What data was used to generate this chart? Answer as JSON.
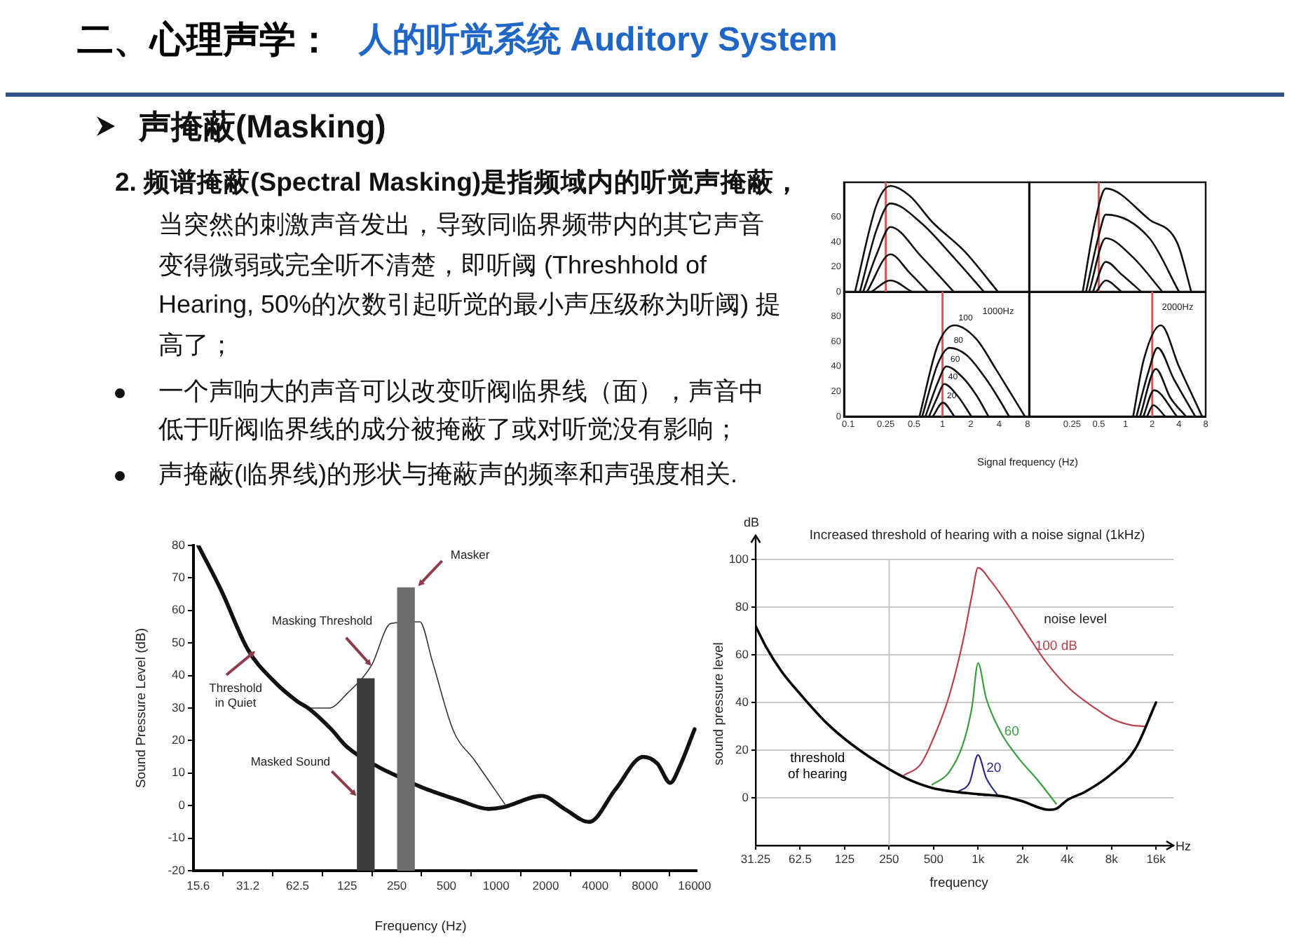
{
  "chart_data": [
    {
      "type": "other",
      "title": "二、心理声学：",
      "subtitle": "人的听觉系统 Auditory System",
      "annotations": [
        "声掩蔽(Masking)",
        "2. 频谱掩蔽(Spectral Masking)是指频域内的听觉声掩蔽，",
        "当突然的刺激声音发出，导致同临界频带内的其它声音变得微弱或完全听不清楚，即听阈 (Threshhold of Hearing, 50%的次数引起听觉的最小声压级称为听阈) 提高了；",
        "一个声响大的声音可以改变听阀临界线（面），声音中低于听阀临界线的成分被掩蔽了或对听觉没有影响；",
        "声掩蔽(临界线)的形状与掩蔽声的频率和声强度相关."
      ]
    },
    {
      "type": "line",
      "log": "x",
      "xlim": [
        0.09,
        8.3
      ],
      "ylim": [
        0,
        88
      ],
      "yticks": [
        0,
        20,
        40,
        60
      ],
      "tick_labels": "y",
      "ref_lines": [
        {
          "axis": "x",
          "value": 0.25,
          "color": "#d9534f"
        }
      ],
      "series": [
        {
          "color": "#111111",
          "x": [
            0.118,
            0.2,
            0.28,
            0.45,
            0.78,
            1.74,
            3.88
          ],
          "values": [
            0,
            70,
            85,
            77,
            56,
            32,
            0
          ]
        },
        {
          "color": "#111111",
          "x": [
            0.133,
            0.2,
            0.28,
            0.6,
            1.3,
            2.75
          ],
          "values": [
            0,
            50,
            71,
            55,
            28,
            0
          ]
        },
        {
          "color": "#111111",
          "x": [
            0.144,
            0.2,
            0.28,
            0.6,
            1.31
          ],
          "values": [
            0,
            30,
            52,
            28,
            0
          ]
        },
        {
          "color": "#111111",
          "x": [
            0.158,
            0.28,
            0.45,
            0.7
          ],
          "values": [
            0,
            30,
            15,
            0
          ]
        },
        {
          "color": "#111111",
          "x": [
            0.177,
            0.28,
            0.47
          ],
          "values": [
            0,
            9,
            0
          ]
        }
      ]
    },
    {
      "type": "line",
      "log": "x",
      "xlim": [
        0.082,
        8
      ],
      "ylim": [
        0,
        88
      ],
      "yticks": [
        0,
        20,
        40,
        60
      ],
      "tick_labels": false,
      "ref_lines": [
        {
          "axis": "x",
          "value": 0.5,
          "color": "#d9534f"
        }
      ],
      "series": [
        {
          "color": "#111111",
          "x": [
            0.33,
            0.45,
            0.6,
            1.86,
            3.84,
            5.5
          ],
          "values": [
            0,
            55,
            83,
            58,
            39,
            0
          ]
        },
        {
          "color": "#111111",
          "x": [
            0.36,
            0.5,
            0.6,
            1.86,
            4.0
          ],
          "values": [
            0,
            45,
            62,
            43,
            0
          ]
        },
        {
          "color": "#111111",
          "x": [
            0.39,
            0.6,
            1.2,
            2.6
          ],
          "values": [
            0,
            43,
            28,
            0
          ]
        },
        {
          "color": "#111111",
          "x": [
            0.43,
            0.6,
            0.9,
            1.5
          ],
          "values": [
            0,
            24,
            14,
            0
          ]
        },
        {
          "color": "#111111",
          "x": [
            0.47,
            0.6,
            0.9
          ],
          "values": [
            0,
            9,
            0
          ]
        }
      ]
    },
    {
      "type": "line",
      "title": "1000Hz",
      "xlabel": "Signal frequency (Hz)",
      "log": "x",
      "xlim": [
        0.09,
        8.3
      ],
      "xticks": [
        0.1,
        0.25,
        0.5,
        1,
        2,
        4,
        8
      ],
      "ylim": [
        0,
        100
      ],
      "yticks": [
        0,
        20,
        40,
        60,
        80
      ],
      "ref_lines": [
        {
          "axis": "x",
          "value": 1,
          "color": "#d9534f"
        }
      ],
      "series": [
        {
          "name": "100",
          "color": "#111111",
          "x": [
            0.57,
            0.89,
            1.34,
            2.29,
            3.68,
            5.26,
            7.5
          ],
          "values": [
            0,
            57,
            73,
            62,
            38,
            19,
            0
          ]
        },
        {
          "name": "80",
          "color": "#111111",
          "x": [
            0.61,
            0.89,
            1.19,
            1.81,
            2.9,
            3.9,
            5.1
          ],
          "values": [
            0,
            42,
            55,
            49,
            30,
            15,
            0
          ]
        },
        {
          "name": "60",
          "color": "#111111",
          "x": [
            0.66,
            0.89,
            1.1,
            1.6,
            2.29,
            3.08
          ],
          "values": [
            0,
            27,
            40,
            32,
            17,
            0
          ]
        },
        {
          "name": "40",
          "color": "#111111",
          "x": [
            0.72,
            0.89,
            1.04,
            1.43,
            2.03
          ],
          "values": [
            0,
            16,
            26,
            17,
            0
          ]
        },
        {
          "name": "20",
          "color": "#111111",
          "x": [
            0.79,
            1.01,
            1.34
          ],
          "values": [
            0,
            11,
            0
          ]
        }
      ]
    },
    {
      "type": "line",
      "title": "2000Hz",
      "log": "x",
      "xlim": [
        0.082,
        8
      ],
      "xticks": [
        0.25,
        0.5,
        1,
        2,
        4,
        8
      ],
      "ylim": [
        0,
        100
      ],
      "yticks": [
        0,
        20,
        40,
        60,
        80
      ],
      "tick_labels": "x",
      "ref_lines": [
        {
          "axis": "x",
          "value": 2,
          "color": "#d9534f"
        }
      ],
      "series": [
        {
          "color": "#111111",
          "x": [
            1.22,
            1.6,
            2.5,
            4.0,
            7.3
          ],
          "values": [
            0,
            45,
            73,
            40,
            0
          ]
        },
        {
          "color": "#111111",
          "x": [
            1.33,
            1.8,
            2.3,
            3.5,
            6.1
          ],
          "values": [
            0,
            35,
            55,
            30,
            0
          ]
        },
        {
          "color": "#111111",
          "x": [
            1.46,
            2.2,
            3.2,
            4.8
          ],
          "values": [
            0,
            38,
            15,
            0
          ]
        },
        {
          "color": "#111111",
          "x": [
            1.59,
            2.1,
            3.8
          ],
          "values": [
            0,
            21,
            0
          ]
        },
        {
          "color": "#111111",
          "x": [
            1.75,
            2.05,
            2.8
          ],
          "values": [
            0,
            9,
            0
          ]
        }
      ]
    },
    {
      "type": "line",
      "xlabel": "Frequency (Hz)",
      "ylabel": "Sound Pressure Level (dB)",
      "log": "x",
      "xlim": [
        14.6,
        16500
      ],
      "xticks": [
        15.6,
        31.2,
        62.5,
        125,
        250,
        500,
        1000,
        2000,
        4000,
        8000,
        16000
      ],
      "ylim": [
        -20,
        80
      ],
      "yticks": [
        -20,
        -10,
        0,
        10,
        20,
        30,
        40,
        50,
        60,
        70,
        80
      ],
      "series": [
        {
          "color": "#111111",
          "x": [
            15.6,
            21.6,
            31.2,
            44.4,
            62.5,
            72.5,
            100,
            125,
            200,
            230,
            340,
            607,
            900,
            1100,
            1900,
            2600,
            3670,
            5300,
            7800,
            9500,
            11400,
            13000,
            16000
          ],
          "values": [
            80,
            66,
            48,
            38.5,
            32,
            30,
            23.5,
            18,
            11.5,
            10,
            6,
            1.5,
            -1,
            -0.5,
            3,
            -1,
            -5,
            5,
            15,
            13,
            7,
            12,
            23.5
          ]
        },
        {
          "color": "#333333",
          "x": [
            72.5,
            97,
            125,
            175,
            230,
            345,
            410,
            551,
            739,
            1130
          ],
          "values": [
            30,
            30,
            34.5,
            43,
            56,
            56.5,
            44.5,
            23,
            14,
            0.5
          ]
        },
        {
          "type": "bar",
          "x": [
            162,
            284
          ],
          "base": [
            -20,
            -20
          ],
          "values": [
            59,
            87
          ],
          "colors": [
            "#3d3d3d",
            "#6e6e6e"
          ]
        }
      ],
      "annotations": [
        {
          "text": "Masker",
          "x": 337,
          "y": 67.5
        },
        {
          "text": "Masking Threshold",
          "x": 175,
          "y": 43
        },
        {
          "text": "Threshold in Quiet",
          "x": 34.6,
          "y": 47.5
        },
        {
          "text": "Masked Sound",
          "x": 142,
          "y": 3
        }
      ]
    },
    {
      "type": "line",
      "title": "Increased threshold of hearing with a noise signal (1kHz)",
      "xlabel": "frequency",
      "ylabel": "sound pressure level",
      "log": "x",
      "xlim": [
        31.25,
        21000
      ],
      "xticks": [
        31.25,
        62.5,
        125,
        250,
        500,
        {
          "value": 1000,
          "label": "1k"
        },
        {
          "value": 2000,
          "label": "2k"
        },
        {
          "value": 4000,
          "label": "4k"
        },
        {
          "value": 8000,
          "label": "8k"
        },
        {
          "value": 16000,
          "label": "16k"
        }
      ],
      "ylim": [
        -20,
        100
      ],
      "yticks": [
        0,
        20,
        40,
        60,
        80,
        100
      ],
      "grid": "y",
      "ref_lines": [
        {
          "axis": "x",
          "value": 250,
          "color": "#c8c8c8"
        }
      ],
      "series": [
        {
          "name": "threshold of hearing",
          "color": "#000000",
          "x": [
            31.25,
            36.6,
            46.8,
            63.6,
            93.9,
            139,
            250,
            359,
            500,
            1000,
            1500,
            2000,
            3000,
            3400,
            4000,
            5300,
            8000,
            11600,
            16000
          ],
          "values": [
            72,
            63.5,
            53,
            43,
            31.5,
            22.5,
            12,
            7,
            4,
            1.5,
            0.5,
            -1.5,
            -5,
            -4.5,
            -1,
            2.5,
            10,
            20.5,
            40
          ]
        },
        {
          "name": "100 dB",
          "color": "#b8404a",
          "x": [
            316,
            408,
            507,
            632,
            786,
            909,
            1000,
            1218,
            1631,
            2184,
            2922,
            4208,
            6063,
            8117,
            10870,
            13330
          ],
          "values": [
            9.5,
            14,
            26,
            42,
            65,
            85,
            96.5,
            91,
            80,
            68,
            56.5,
            45.5,
            38,
            33,
            30.5,
            30
          ]
        },
        {
          "name": "60",
          "color": "#3a9e40",
          "x": [
            489,
            632,
            786,
            909,
            1000,
            1132,
            1409,
            1887,
            2526,
            3378
          ],
          "values": [
            5.5,
            10.5,
            22,
            38,
            56.5,
            42,
            28,
            16.5,
            7.5,
            -2.5
          ]
        },
        {
          "name": "20",
          "color": "#2a2a8a",
          "x": [
            731,
            877,
            1000,
            1132,
            1359
          ],
          "values": [
            2.5,
            6.5,
            18,
            8.5,
            1
          ]
        }
      ],
      "annotations": [
        "noise level",
        "dB",
        "Hz"
      ]
    }
  ]
}
